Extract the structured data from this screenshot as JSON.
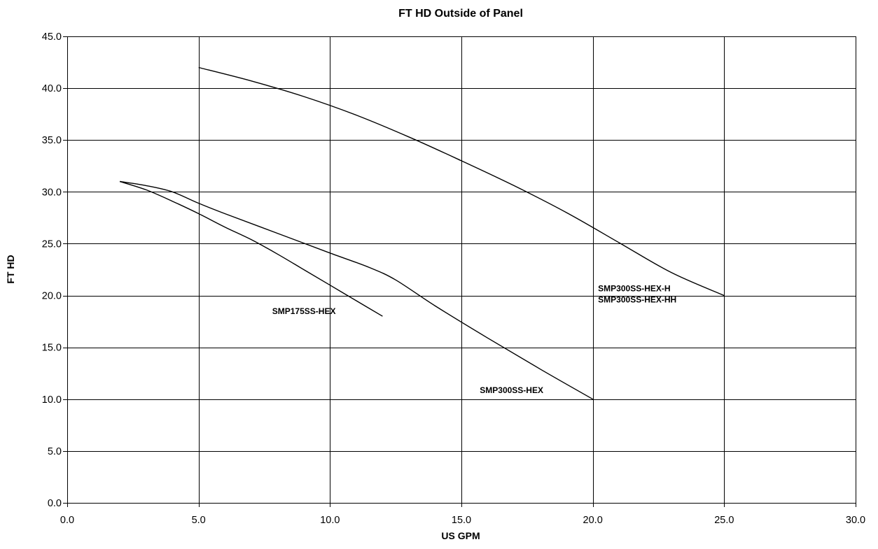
{
  "chart_data": {
    "type": "line",
    "title": "FT HD Outside of Panel",
    "xlabel": "US GPM",
    "ylabel": "FT HD",
    "xlim": [
      0,
      30
    ],
    "ylim": [
      0,
      45
    ],
    "x_ticks": [
      0,
      5,
      10,
      15,
      20,
      25,
      30
    ],
    "y_ticks": [
      0,
      5,
      10,
      15,
      20,
      25,
      30,
      35,
      40,
      45
    ],
    "x_tick_labels": [
      "0.0",
      "5.0",
      "10.0",
      "15.0",
      "20.0",
      "25.0",
      "30.0"
    ],
    "y_tick_labels": [
      "0.0",
      "5.0",
      "10.0",
      "15.0",
      "20.0",
      "25.0",
      "30.0",
      "35.0",
      "40.0",
      "45.0"
    ],
    "grid": true,
    "legend": "none",
    "line_color": "#000000",
    "series": [
      {
        "name": "SMP175SS-HEX",
        "label_lines": [
          "SMP175SS-HEX"
        ],
        "x": [
          2,
          3,
          4,
          5,
          6,
          7,
          8,
          9,
          10,
          11,
          12
        ],
        "y": [
          31.0,
          30.2,
          29.1,
          27.9,
          26.6,
          25.4,
          24.0,
          22.5,
          21.0,
          19.5,
          18.0
        ]
      },
      {
        "name": "SMP300SS-HEX",
        "label_lines": [
          "SMP300SS-HEX"
        ],
        "x": [
          2,
          3,
          4,
          5,
          6,
          8,
          10,
          11.5,
          12.5,
          14,
          16,
          18,
          20
        ],
        "y": [
          31.0,
          30.6,
          30.0,
          28.9,
          27.9,
          26.0,
          24.1,
          22.7,
          21.5,
          19.0,
          15.9,
          12.9,
          10.0
        ]
      },
      {
        "name": "SMP300SS-HEX-H / SMP300SS-HEX-HH",
        "label_lines": [
          "SMP300SS-HEX-H",
          "SMP300SS-HEX-HH"
        ],
        "x": [
          5,
          7,
          9,
          11,
          13,
          15,
          17,
          19,
          21,
          23,
          25
        ],
        "y": [
          42.0,
          40.7,
          39.2,
          37.4,
          35.3,
          33.0,
          30.6,
          28.0,
          25.1,
          22.2,
          20.0
        ]
      }
    ]
  }
}
